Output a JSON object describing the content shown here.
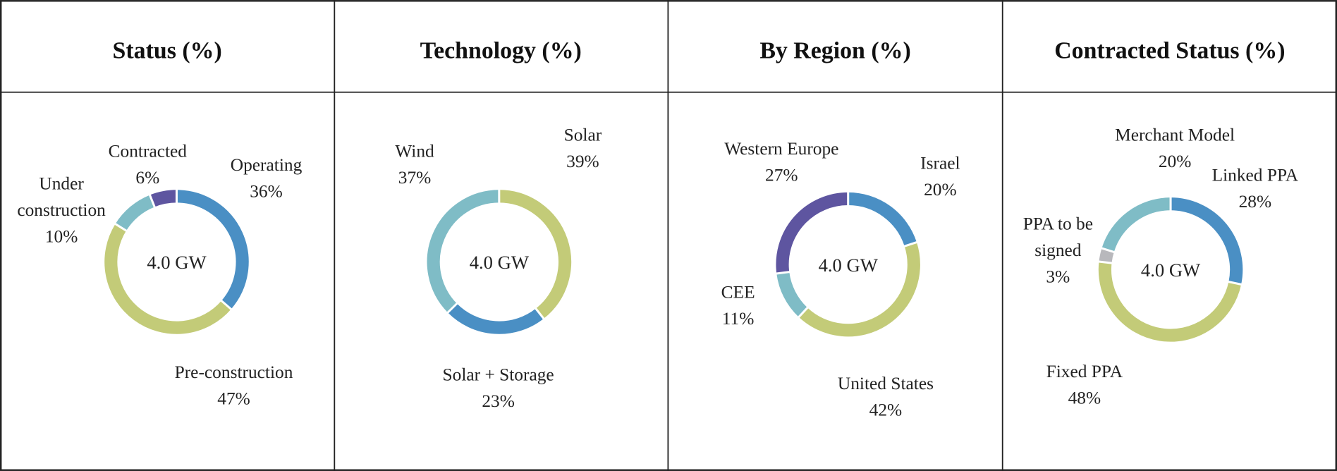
{
  "chart_data": [
    {
      "type": "pie",
      "title": "Status (%)",
      "center_label": "4.0 GW",
      "slices": [
        {
          "label": "Operating",
          "value": 36,
          "value_label": "36%",
          "color": "#4a8fc4"
        },
        {
          "label": "Pre-construction",
          "value": 47,
          "value_label": "47%",
          "color": "#c3cb78"
        },
        {
          "label": "Under construction",
          "value": 10,
          "value_label": "10%",
          "color": "#7fbcc6"
        },
        {
          "label": "Contracted",
          "value": 6,
          "value_label": "6%",
          "color": "#5e55a0"
        }
      ]
    },
    {
      "type": "pie",
      "title": "Technology (%)",
      "center_label": "4.0 GW",
      "slices": [
        {
          "label": "Solar",
          "value": 39,
          "value_label": "39%",
          "color": "#c3cb78"
        },
        {
          "label": "Solar + Storage",
          "value": 23,
          "value_label": "23%",
          "color": "#4a8fc4"
        },
        {
          "label": "Wind",
          "value": 37,
          "value_label": "37%",
          "color": "#7fbcc6"
        }
      ]
    },
    {
      "type": "pie",
      "title": "By Region (%)",
      "center_label": "4.0 GW",
      "slices": [
        {
          "label": "Israel",
          "value": 20,
          "value_label": "20%",
          "color": "#4a8fc4"
        },
        {
          "label": "United States",
          "value": 42,
          "value_label": "42%",
          "color": "#c3cb78"
        },
        {
          "label": "CEE",
          "value": 11,
          "value_label": "11%",
          "color": "#7fbcc6"
        },
        {
          "label": "Western Europe",
          "value": 27,
          "value_label": "27%",
          "color": "#5e55a0"
        }
      ]
    },
    {
      "type": "pie",
      "title": "Contracted Status (%)",
      "center_label": "4.0 GW",
      "slices": [
        {
          "label": "Linked PPA",
          "value": 28,
          "value_label": "28%",
          "color": "#4a8fc4"
        },
        {
          "label": "Fixed PPA",
          "value": 48,
          "value_label": "48%",
          "color": "#c3cb78"
        },
        {
          "label": "PPA to be signed",
          "value": 3,
          "value_label": "3%",
          "color": "#b8b8bc"
        },
        {
          "label": "Merchant Model",
          "value": 20,
          "value_label": "20%",
          "color": "#7fbcc6"
        }
      ]
    }
  ]
}
